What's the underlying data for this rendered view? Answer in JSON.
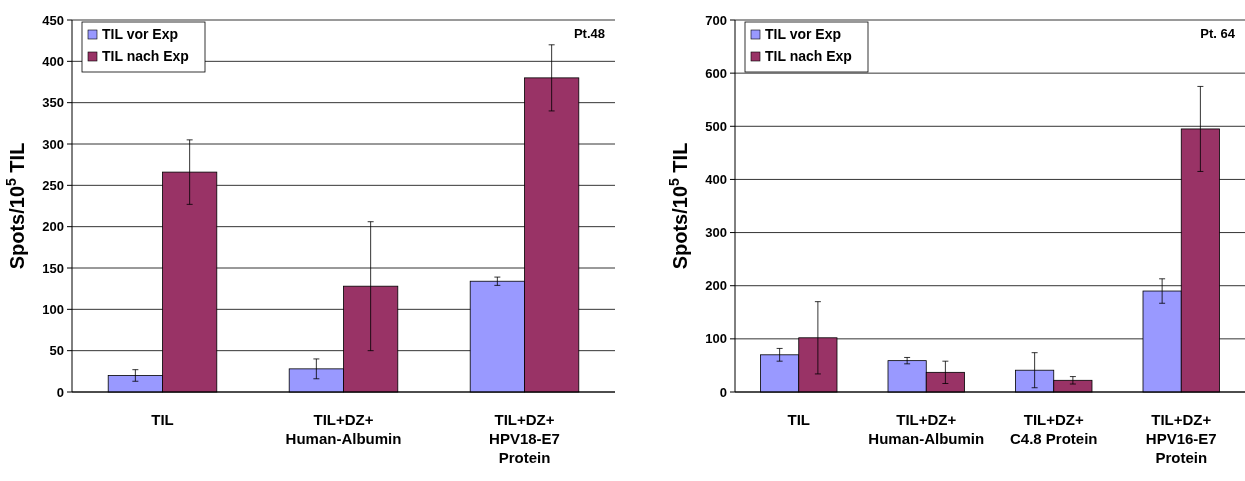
{
  "chart_data": [
    {
      "type": "bar",
      "categories": [
        "TIL",
        "TIL+DZ+\nHuman-Albumin",
        "TIL+DZ+\nHPV18-E7\nProtein"
      ],
      "ylabel": "Spots/10$^{5}$ TIL",
      "annotations": [
        "Pt.48"
      ],
      "ylim": [
        0,
        450
      ],
      "yticks": [
        0,
        50,
        100,
        150,
        200,
        250,
        300,
        350,
        400,
        450
      ],
      "grid": "y",
      "legend": "top left",
      "series": [
        {
          "name": "TIL vor Exp",
          "color": "#9999ff",
          "values": [
            20,
            28,
            134
          ],
          "errors": [
            7,
            12,
            5
          ]
        },
        {
          "name": "TIL nach Exp",
          "color": "#993366",
          "values": [
            266,
            128,
            380
          ],
          "errors": [
            39,
            78,
            40
          ]
        }
      ]
    },
    {
      "type": "bar",
      "categories": [
        "TIL",
        "TIL+DZ+\nHuman-Albumin",
        "TIL+DZ+\nC4.8 Protein",
        "TIL+DZ+\nHPV16-E7\nProtein"
      ],
      "ylabel": "Spots/10$^{5}$ TIL",
      "annotations": [
        "Pt. 64"
      ],
      "ylim": [
        0,
        700
      ],
      "yticks": [
        0,
        100,
        200,
        300,
        400,
        500,
        600,
        700
      ],
      "grid": "y",
      "legend": "top left",
      "series": [
        {
          "name": "TIL vor Exp",
          "color": "#9999ff",
          "values": [
            70,
            59,
            41,
            190
          ],
          "errors": [
            12,
            6,
            33,
            23
          ]
        },
        {
          "name": "TIL nach Exp",
          "color": "#993366",
          "values": [
            102,
            37,
            22,
            495
          ],
          "errors": [
            68,
            21,
            7,
            80
          ]
        }
      ]
    }
  ]
}
